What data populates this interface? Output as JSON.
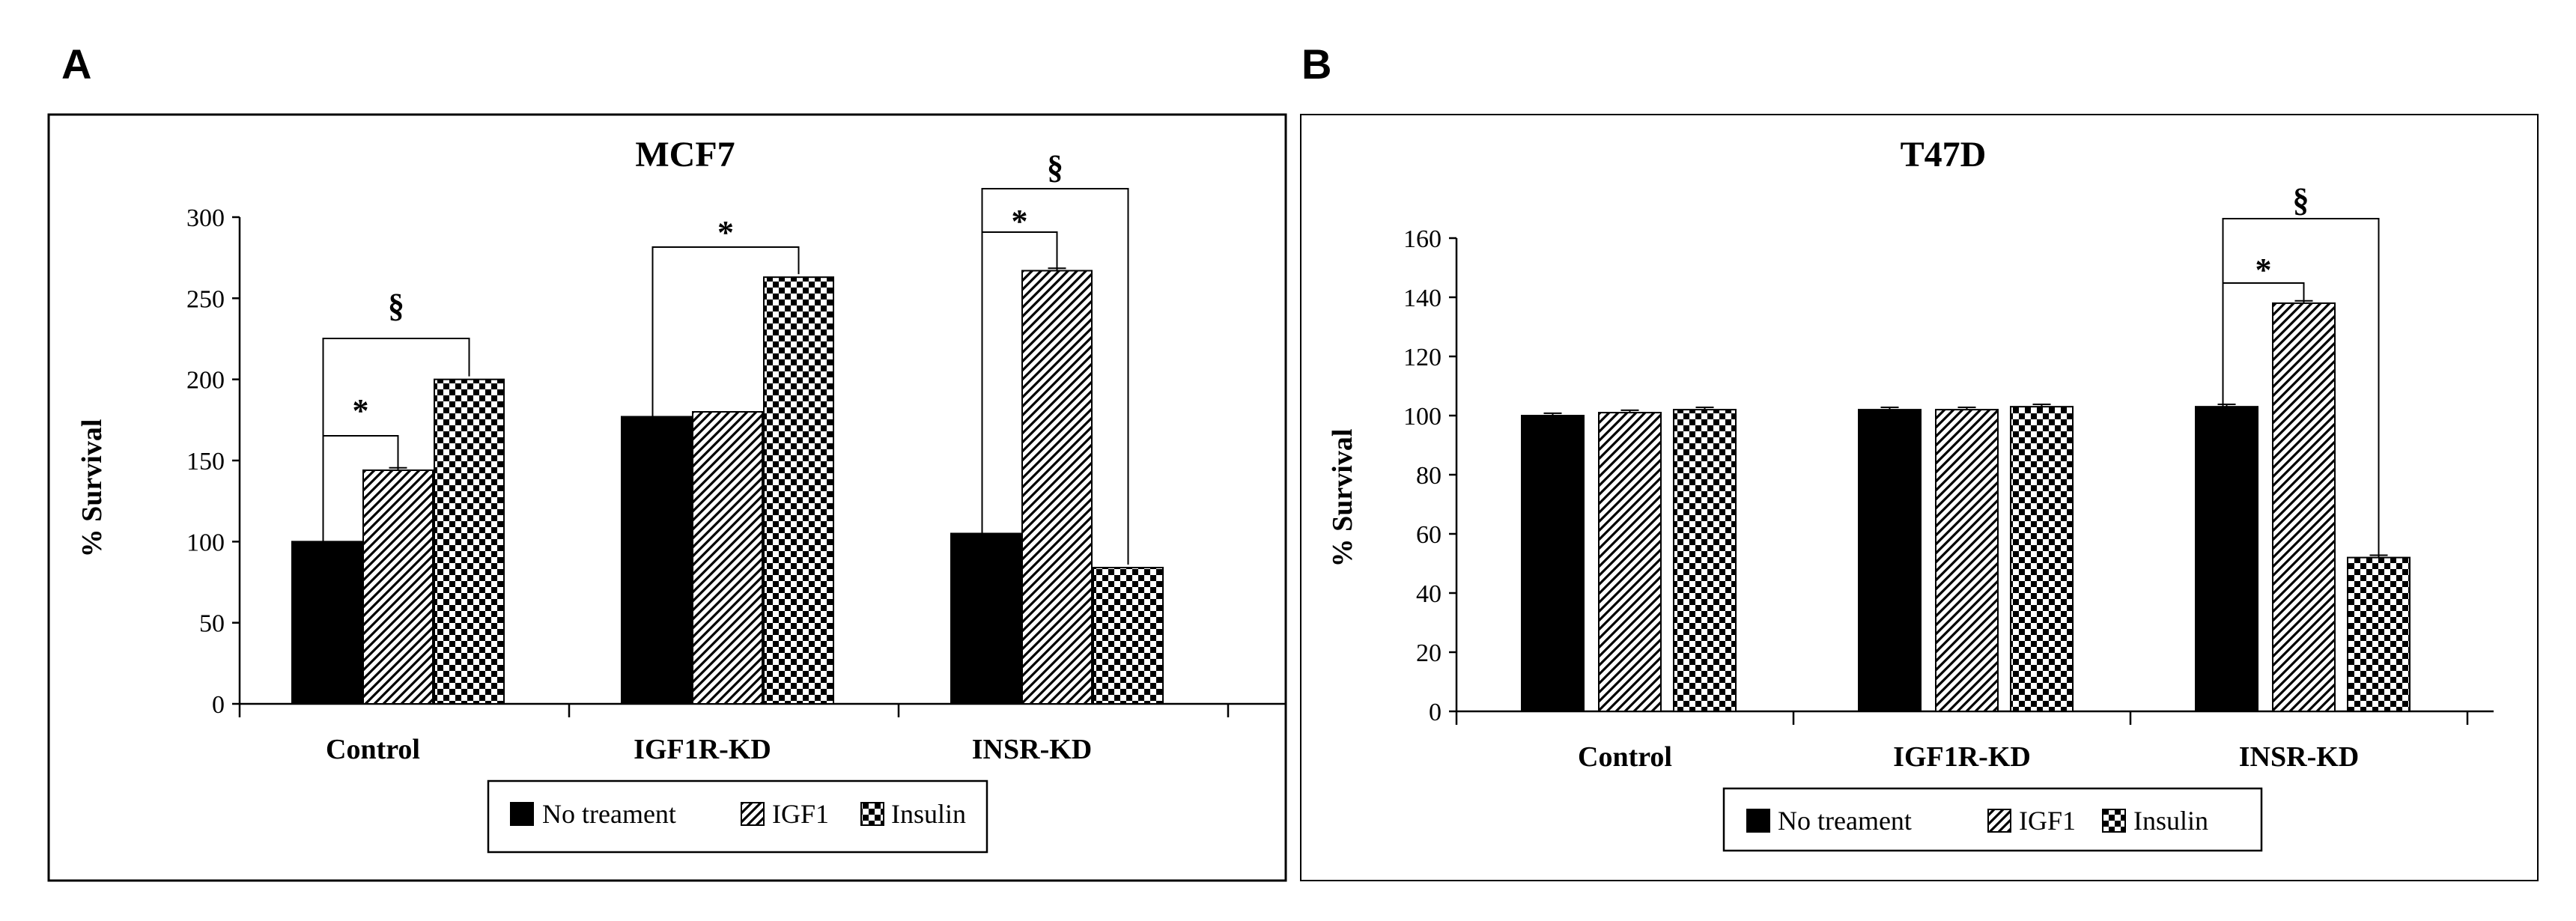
{
  "chart_data": [
    {
      "type": "bar",
      "panel_label": "A",
      "title": "MCF7",
      "ylabel": "% Survival",
      "xlabel": "",
      "ylim": [
        0,
        300
      ],
      "yticks": [
        "0",
        "50",
        "100",
        "150",
        "200",
        "250",
        "300"
      ],
      "categories": [
        "Control",
        "IGF1R-KD",
        "INSR-KD"
      ],
      "series": [
        {
          "name": "No treament",
          "values": [
            100,
            177,
            105
          ],
          "errors": [
            0,
            0,
            0
          ]
        },
        {
          "name": "IGF1",
          "values": [
            144,
            180,
            267
          ],
          "errors": [
            1.5,
            0,
            1.5
          ]
        },
        {
          "name": "Insulin",
          "values": [
            200,
            263,
            84
          ],
          "errors": [
            0,
            0,
            0
          ]
        }
      ],
      "legend": [
        "No treament",
        "IGF1",
        "Insulin"
      ],
      "legend_position": "bottom",
      "annotations": [
        {
          "group": 0,
          "from": 0,
          "to": 1,
          "symbol": "*"
        },
        {
          "group": 0,
          "from": 0,
          "to": 2,
          "symbol": "§"
        },
        {
          "group": 1,
          "from": 0,
          "to": 2,
          "symbol": "*"
        },
        {
          "group": 2,
          "from": 0,
          "to": 1,
          "symbol": "*"
        },
        {
          "group": 2,
          "from": 0,
          "to": 2,
          "symbol": "§"
        }
      ]
    },
    {
      "type": "bar",
      "panel_label": "B",
      "title": "T47D",
      "ylabel": "% Survival",
      "xlabel": "",
      "ylim": [
        0,
        160
      ],
      "yticks": [
        "0",
        "20",
        "40",
        "60",
        "80",
        "100",
        "120",
        "140",
        "160"
      ],
      "categories": [
        "Control",
        "IGF1R-KD",
        "INSR-KD"
      ],
      "series": [
        {
          "name": "No treament",
          "values": [
            100,
            102,
            103
          ],
          "errors": [
            0.8,
            0.8,
            0.8
          ]
        },
        {
          "name": "IGF1",
          "values": [
            101,
            102,
            138
          ],
          "errors": [
            0.8,
            0.8,
            0.8
          ]
        },
        {
          "name": "Insulin",
          "values": [
            102,
            103,
            52
          ],
          "errors": [
            0.8,
            0.8,
            0.8
          ]
        }
      ],
      "legend": [
        "No treament",
        "IGF1",
        "Insulin"
      ],
      "legend_position": "bottom",
      "annotations": [
        {
          "group": 2,
          "from": 0,
          "to": 1,
          "symbol": "*"
        },
        {
          "group": 2,
          "from": 0,
          "to": 2,
          "symbol": "§"
        }
      ]
    }
  ]
}
